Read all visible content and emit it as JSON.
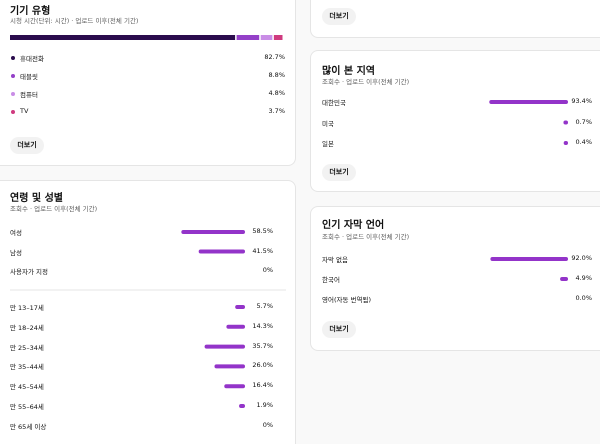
{
  "top_card": {
    "button": "더보기"
  },
  "device": {
    "title": "기기 유형",
    "subtitle": "시청 시간(단위: 시간) · 업로드 이후(전체 기간)",
    "items": [
      {
        "label": "휴대전화",
        "value": 82.7,
        "value_label": "82.7%",
        "color": "#2b0c4d"
      },
      {
        "label": "태블릿",
        "value": 8.8,
        "value_label": "8.8%",
        "color": "#9440c8"
      },
      {
        "label": "컴퓨터",
        "value": 4.8,
        "value_label": "4.8%",
        "color": "#c98de6"
      },
      {
        "label": "TV",
        "value": 3.7,
        "value_label": "3.7%",
        "color": "#cf3a7f"
      }
    ],
    "button": "더보기"
  },
  "age_gender": {
    "title": "연령 및 성별",
    "subtitle": "조회수 · 업로드 이후(전체 기간)",
    "gender": [
      {
        "label": "여성",
        "value": 58.5,
        "value_label": "58.5%"
      },
      {
        "label": "남성",
        "value": 41.5,
        "value_label": "41.5%"
      },
      {
        "label": "사용자가 지정",
        "value": 0,
        "value_label": "0%"
      }
    ],
    "age": [
      {
        "label": "만 13–17세",
        "value": 5.7,
        "value_label": "5.7%"
      },
      {
        "label": "만 18–24세",
        "value": 14.3,
        "value_label": "14.3%"
      },
      {
        "label": "만 25–34세",
        "value": 35.7,
        "value_label": "35.7%"
      },
      {
        "label": "만 35–44세",
        "value": 26.0,
        "value_label": "26.0%"
      },
      {
        "label": "만 45–54세",
        "value": 16.4,
        "value_label": "16.4%"
      },
      {
        "label": "만 55–64세",
        "value": 1.9,
        "value_label": "1.9%"
      },
      {
        "label": "만 65세 이상",
        "value": 0,
        "value_label": "0%"
      }
    ]
  },
  "regions": {
    "title": "많이 본 지역",
    "subtitle": "조회수 · 업로드 이후(전체 기간)",
    "items": [
      {
        "label": "대한민국",
        "value": 93.4,
        "value_label": "93.4%"
      },
      {
        "label": "미국",
        "value": 0.7,
        "value_label": "0.7%"
      },
      {
        "label": "일본",
        "value": 0.4,
        "value_label": "0.4%"
      }
    ],
    "button": "더보기"
  },
  "subtitles": {
    "title": "인기 자막 언어",
    "subtitle": "조회수 · 업로드 이후(전체 기간)",
    "items": [
      {
        "label": "자막 없음",
        "value": 92.0,
        "value_label": "92.0%"
      },
      {
        "label": "한국어",
        "value": 4.9,
        "value_label": "4.9%"
      },
      {
        "label": "영어(자동 번역됨)",
        "value": 0.0,
        "value_label": "0.0%"
      }
    ],
    "button": "더보기"
  },
  "bar_color": "#9334c9"
}
